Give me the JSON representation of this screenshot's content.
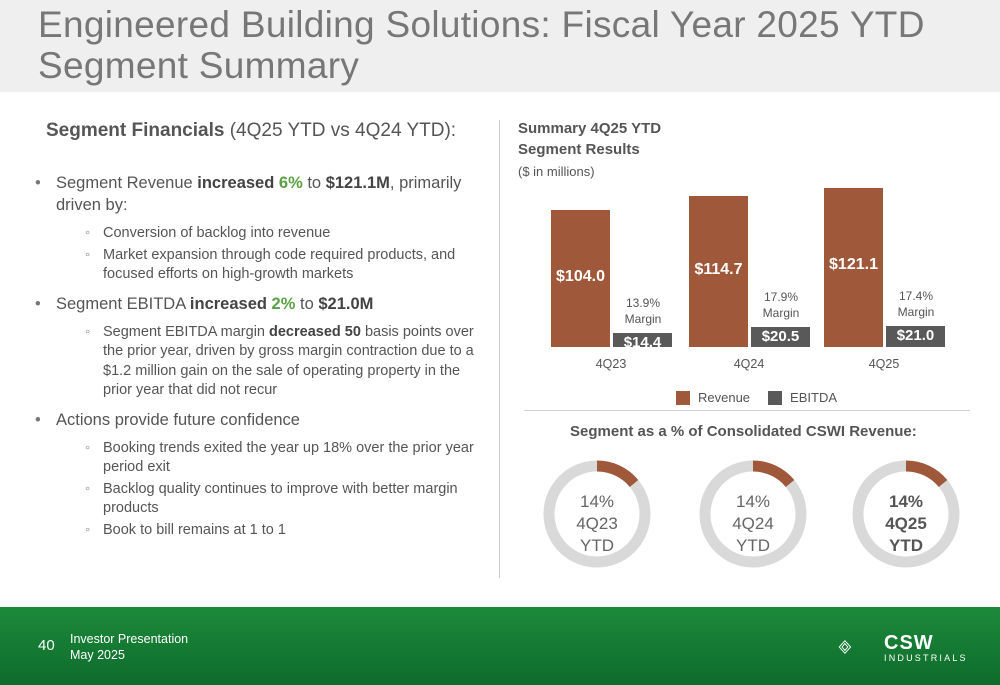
{
  "title": "Engineered Building Solutions: Fiscal Year 2025 YTD Segment Summary",
  "left": {
    "heading_bold": "Segment Financials",
    "heading_rest": " (4Q25 YTD vs 4Q24 YTD):",
    "bullets": [
      {
        "pre": "Segment Revenue ",
        "bold": "increased ",
        "green": "6%",
        "mid": " to ",
        "bold2": "$121.1M",
        "post": ", primarily driven by:",
        "subs": [
          "Conversion of backlog into revenue",
          "Market expansion through code required products, and focused efforts on high-growth markets"
        ]
      },
      {
        "pre": "Segment EBITDA ",
        "bold": "increased ",
        "green": "2%",
        "mid": " to ",
        "bold2": "$21.0M",
        "post": "",
        "sub_rich": {
          "pre": "Segment EBITDA margin ",
          "bold": "decreased 50",
          "post": " basis points over the prior year, driven by gross margin contraction due to a $1.2 million gain on the sale of operating property in the prior year that did not recur"
        }
      },
      {
        "text": "Actions provide future confidence",
        "subs": [
          "Booking trends exited the year up 18% over the prior year period exit",
          "Backlog quality continues to improve with better margin products",
          "Book to bill remains at 1 to 1"
        ]
      }
    ]
  },
  "chart_data": {
    "type": "bar",
    "title": "Summary 4Q25 YTD Segment Results",
    "subtitle": "($ in millions)",
    "categories": [
      "4Q23",
      "4Q24",
      "4Q25"
    ],
    "series": [
      {
        "name": "Revenue",
        "values": [
          104.0,
          114.7,
          121.1
        ],
        "labels": [
          "$104.0",
          "$114.7",
          "$121.1"
        ],
        "color": "#a0583a"
      },
      {
        "name": "EBITDA",
        "values": [
          14.4,
          20.5,
          21.0
        ],
        "labels": [
          "$14.4",
          "$20.5",
          "$21.0"
        ],
        "color": "#595959"
      }
    ],
    "margins": [
      "13.9%",
      "17.9%",
      "17.4%"
    ],
    "margin_word": "Margin"
  },
  "donuts": {
    "heading": "Segment as a % of Consolidated CSWI Revenue:",
    "items": [
      {
        "pct": "14%",
        "period": "4Q23",
        "suffix": "YTD",
        "value": 0.14,
        "bold": false
      },
      {
        "pct": "14%",
        "period": "4Q24",
        "suffix": "YTD",
        "value": 0.14,
        "bold": false
      },
      {
        "pct": "14%",
        "period": "4Q25",
        "suffix": "YTD",
        "value": 0.14,
        "bold": true
      }
    ],
    "accent": "#a0583a",
    "track": "#d9d9d9"
  },
  "footer": {
    "page": "40",
    "line1": "Investor Presentation",
    "line2": "May 2025",
    "logo_name": "CSW",
    "logo_sub": "INDUSTRIALS"
  }
}
